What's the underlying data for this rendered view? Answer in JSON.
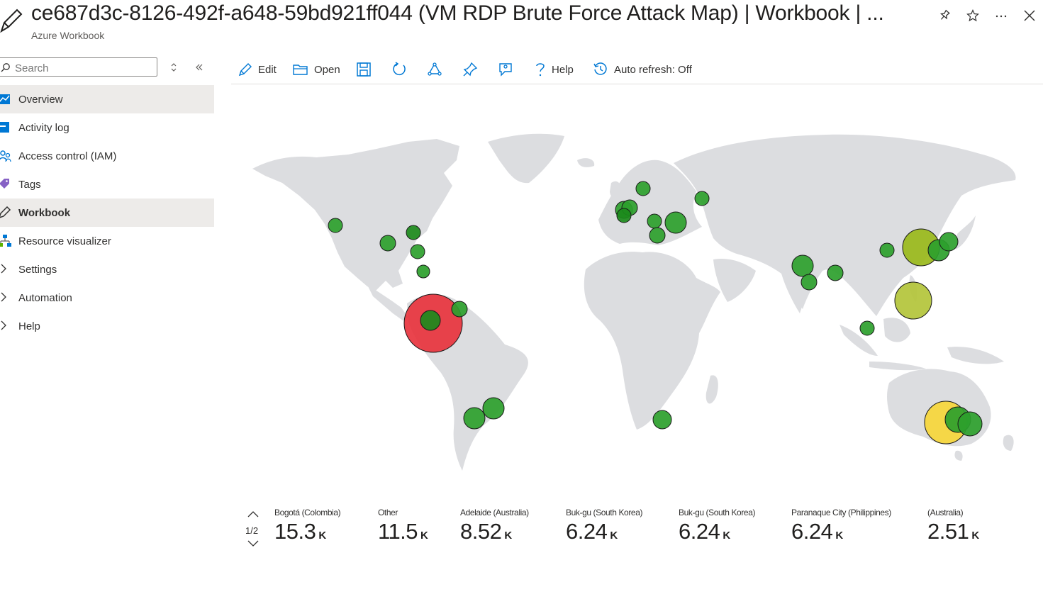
{
  "header": {
    "title": "ce687d3c-8126-492f-a648-59bd921ff044 (VM RDP Brute Force Attack Map) | Workbook | ...",
    "subtitle": "Azure Workbook"
  },
  "sidebar": {
    "search_placeholder": "Search",
    "items": [
      {
        "label": "Overview",
        "icon": "overview-icon"
      },
      {
        "label": "Activity log",
        "icon": "activity-log-icon"
      },
      {
        "label": "Access control (IAM)",
        "icon": "iam-icon"
      },
      {
        "label": "Tags",
        "icon": "tag-icon"
      },
      {
        "label": "Workbook",
        "icon": "pencil-icon"
      },
      {
        "label": "Resource visualizer",
        "icon": "visualizer-icon"
      },
      {
        "label": "Settings",
        "icon": "chevron-right-icon"
      },
      {
        "label": "Automation",
        "icon": "chevron-right-icon"
      },
      {
        "label": "Help",
        "icon": "chevron-right-icon"
      }
    ]
  },
  "toolbar": {
    "edit": "Edit",
    "open": "Open",
    "help": "Help",
    "auto_refresh": "Auto refresh: Off"
  },
  "colors": {
    "green": "#2ca02c",
    "dark_green": "#1c8a1c",
    "red": "#e8303a",
    "yellow": "#f6d63a",
    "olive": "#99b91a",
    "lime": "#b3c43a",
    "land": "#dcdde0"
  },
  "metrics": {
    "page": "1/2",
    "items": [
      {
        "label": "Bogotá (Colombia)",
        "value": "15.3",
        "unit": "K"
      },
      {
        "label": "Other",
        "value": "11.5",
        "unit": "K"
      },
      {
        "label": "Adelaide (Australia)",
        "value": "8.52",
        "unit": "K"
      },
      {
        "label": "Buk-gu (South Korea)",
        "value": "6.24",
        "unit": "K"
      },
      {
        "label": "Buk-gu (South Korea)",
        "value": "6.24",
        "unit": "K"
      },
      {
        "label": "Paranaque City (Philippines)",
        "value": "6.24",
        "unit": "K"
      },
      {
        "label": "(Australia)",
        "value": "2.51",
        "unit": "K"
      }
    ]
  }
}
